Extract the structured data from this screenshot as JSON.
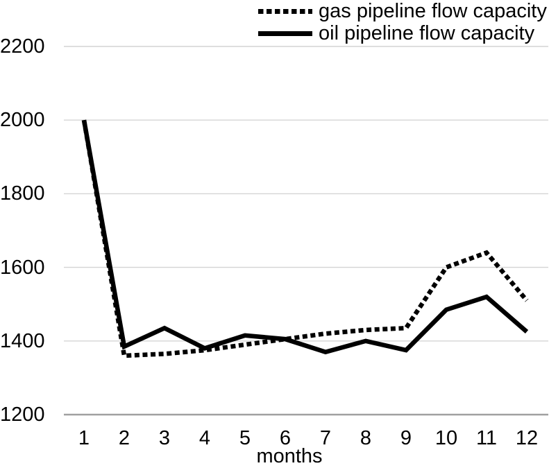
{
  "chart_data": {
    "type": "line",
    "title": "",
    "xlabel": "months",
    "ylabel": "",
    "x": [
      1,
      2,
      3,
      4,
      5,
      6,
      7,
      8,
      9,
      10,
      11,
      12
    ],
    "yticks": [
      1200,
      1400,
      1600,
      1800,
      2000,
      2200
    ],
    "ylim": [
      1200,
      2200
    ],
    "grid": true,
    "legend_position": "top",
    "series": [
      {
        "name": "gas pipeline flow capacity",
        "line_style": "dotted",
        "color": "#000000",
        "values": [
          2000,
          1360,
          1365,
          1375,
          1390,
          1405,
          1420,
          1430,
          1435,
          1600,
          1640,
          1510
        ]
      },
      {
        "name": "oil pipeline flow capacity",
        "line_style": "solid",
        "color": "#000000",
        "values": [
          2000,
          1385,
          1435,
          1380,
          1415,
          1405,
          1370,
          1400,
          1375,
          1485,
          1520,
          1425
        ]
      }
    ]
  },
  "colors": {
    "background": "#ffffff",
    "text": "#000000",
    "gridline": "#d4d4d4",
    "axis_line": "#a0a0a0",
    "series_line": "#000000"
  }
}
